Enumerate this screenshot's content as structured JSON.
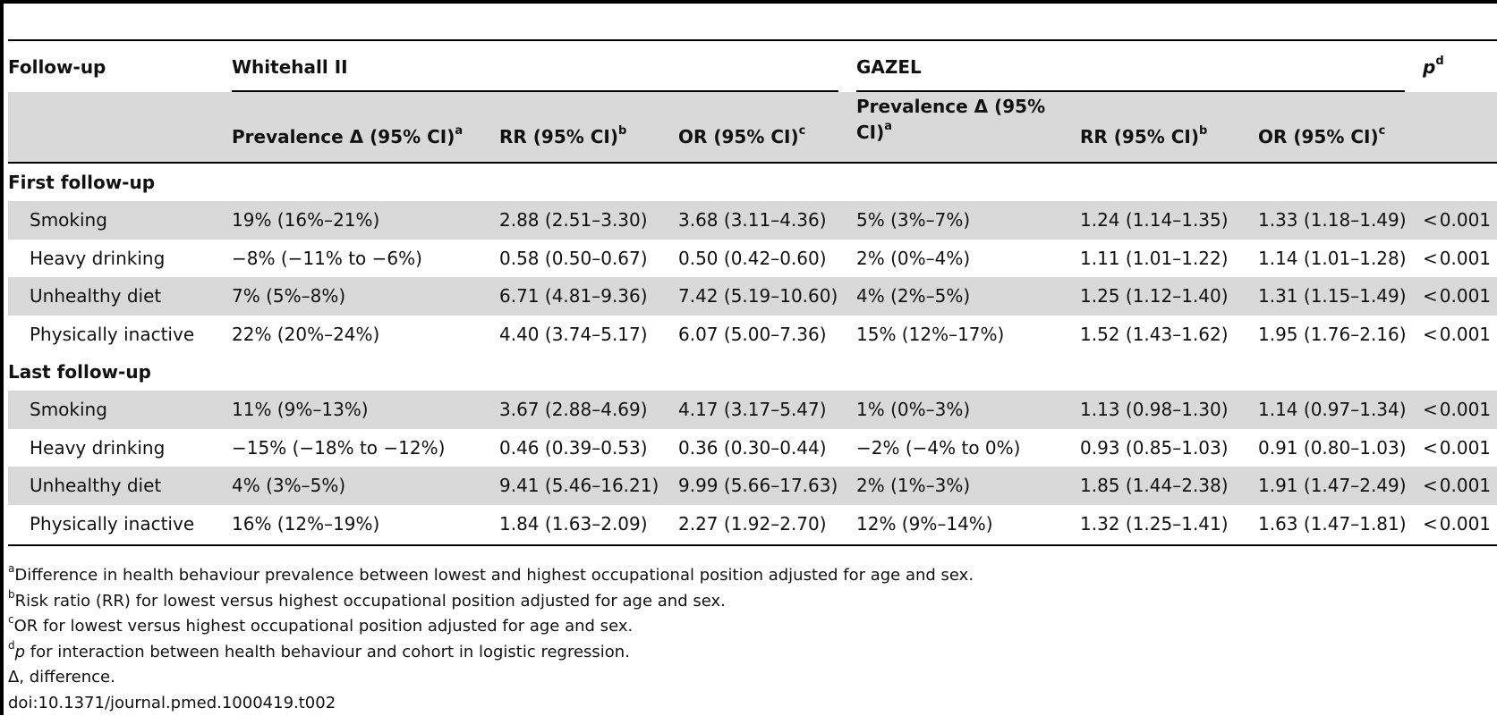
{
  "header": {
    "followup_label": "Follow-up",
    "whitehall_label": "Whitehall II",
    "gazel_label": "GAZEL",
    "p_label": "p",
    "p_sup": "d",
    "col_prev_wh": "Prevalence Δ (95% CI)",
    "col_prev_wh_sup": "a",
    "col_rr_wh": "RR (95% CI)",
    "col_rr_wh_sup": "b",
    "col_or_wh": "OR (95% CI)",
    "col_or_wh_sup": "c",
    "col_prev_gz_line1": "Prevalence Δ (95%",
    "col_prev_gz_line2": "CI)",
    "col_prev_gz_sup": "a",
    "col_rr_gz": "RR (95% CI)",
    "col_rr_gz_sup": "b",
    "col_or_gz": "OR (95% CI)",
    "col_or_gz_sup": "c"
  },
  "sections": [
    {
      "title": "First follow-up",
      "rows": [
        {
          "label": "Smoking",
          "prev_wh": "19% (16%–21%)",
          "rr_wh": "2.88 (2.51–3.30)",
          "or_wh": "3.68 (3.11–4.36)",
          "prev_gz": "5% (3%–7%)",
          "rr_gz": "1.24 (1.14–1.35)",
          "or_gz": "1.33 (1.18–1.49)",
          "p": "0.001"
        },
        {
          "label": "Heavy drinking",
          "prev_wh": "−8% (−11% to −6%)",
          "rr_wh": "0.58 (0.50–0.67)",
          "or_wh": "0.50 (0.42–0.60)",
          "prev_gz": "2% (0%–4%)",
          "rr_gz": "1.11 (1.01–1.22)",
          "or_gz": "1.14 (1.01–1.28)",
          "p": "0.001"
        },
        {
          "label": "Unhealthy diet",
          "prev_wh": "7% (5%–8%)",
          "rr_wh": "6.71 (4.81–9.36)",
          "or_wh": "7.42 (5.19–10.60)",
          "prev_gz": "4% (2%–5%)",
          "rr_gz": "1.25 (1.12–1.40)",
          "or_gz": "1.31 (1.15–1.49)",
          "p": "0.001"
        },
        {
          "label": "Physically inactive",
          "prev_wh": "22% (20%–24%)",
          "rr_wh": "4.40 (3.74–5.17)",
          "or_wh": "6.07 (5.00–7.36)",
          "prev_gz": "15% (12%–17%)",
          "rr_gz": "1.52 (1.43–1.62)",
          "or_gz": "1.95 (1.76–2.16)",
          "p": "0.001"
        }
      ]
    },
    {
      "title": "Last follow-up",
      "rows": [
        {
          "label": "Smoking",
          "prev_wh": "11% (9%–13%)",
          "rr_wh": "3.67 (2.88–4.69)",
          "or_wh": "4.17 (3.17–5.47)",
          "prev_gz": "1% (0%–3%)",
          "rr_gz": "1.13 (0.98–1.30)",
          "or_gz": "1.14 (0.97–1.34)",
          "p": "0.001"
        },
        {
          "label": "Heavy drinking",
          "prev_wh": "−15% (−18% to −12%)",
          "rr_wh": "0.46 (0.39–0.53)",
          "or_wh": "0.36 (0.30–0.44)",
          "prev_gz": "−2% (−4% to 0%)",
          "rr_gz": "0.93 (0.85–1.03)",
          "or_gz": "0.91 (0.80–1.03)",
          "p": "0.001"
        },
        {
          "label": "Unhealthy diet",
          "prev_wh": "4% (3%–5%)",
          "rr_wh": "9.41 (5.46–16.21)",
          "or_wh": "9.99 (5.66–17.63)",
          "prev_gz": "2% (1%–3%)",
          "rr_gz": "1.85 (1.44–2.38)",
          "or_gz": "1.91 (1.47–2.49)",
          "p": "0.001"
        },
        {
          "label": "Physically inactive",
          "prev_wh": "16% (12%–19%)",
          "rr_wh": "1.84 (1.63–2.09)",
          "or_wh": "2.27 (1.92–2.70)",
          "prev_gz": "12% (9%–14%)",
          "rr_gz": "1.32 (1.25–1.41)",
          "or_gz": "1.63 (1.47–1.81)",
          "p": "0.001"
        }
      ]
    }
  ],
  "p_prefix": "<",
  "footnotes": [
    {
      "sup": "a",
      "text": "Difference in health behaviour prevalence between lowest and highest occupational position adjusted for age and sex."
    },
    {
      "sup": "b",
      "text": "Risk ratio (RR) for lowest versus highest occupational position adjusted for age and sex."
    },
    {
      "sup": "c",
      "text": "OR for lowest versus highest occupational position adjusted for age and sex."
    },
    {
      "sup": "d",
      "italic": "p",
      "text": " for interaction between health behaviour and cohort in logistic regression."
    },
    {
      "sup": "",
      "text": "Δ, difference."
    },
    {
      "sup": "",
      "text": "doi:10.1371/journal.pmed.1000419.t002"
    }
  ]
}
